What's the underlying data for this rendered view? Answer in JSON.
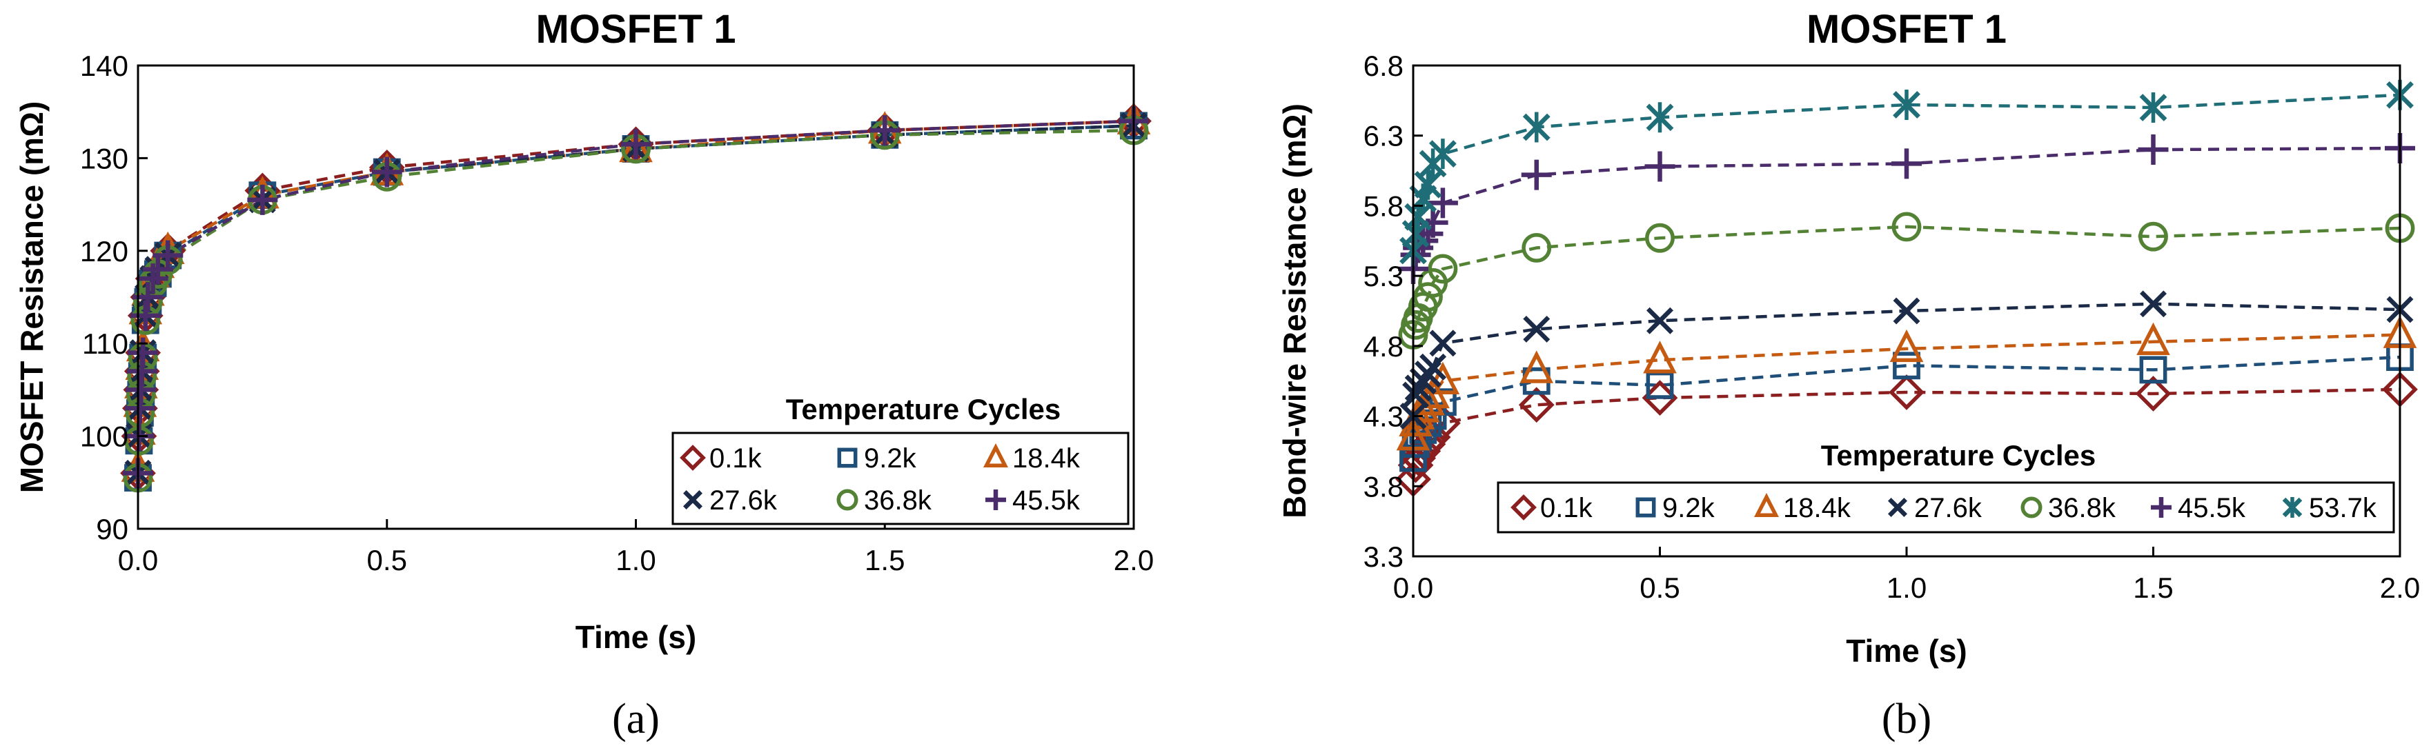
{
  "chart_data": [
    {
      "type": "scatter",
      "panel_label": "(a)",
      "title": "MOSFET 1",
      "xlabel": "Time (s)",
      "ylabel": "MOSFET Resistance (mΩ)",
      "xlim": [
        0,
        2
      ],
      "ylim": [
        90,
        140
      ],
      "xticks": [
        "0.0",
        "0.5",
        "1.0",
        "1.5",
        "2.0"
      ],
      "yticks": [
        "90",
        "100",
        "110",
        "120",
        "130",
        "140"
      ],
      "legend_title": "Temperature Cycles",
      "legend_position": "bottom-right",
      "series": [
        {
          "name": "0.1k",
          "marker": "diamond",
          "color": "#8B1E1E",
          "x": [
            0,
            0.002,
            0.004,
            0.006,
            0.008,
            0.01,
            0.015,
            0.02,
            0.03,
            0.04,
            0.06,
            0.25,
            0.5,
            1.0,
            1.5,
            2.0
          ],
          "y": [
            96,
            100,
            103,
            105,
            107,
            109,
            113,
            115,
            117,
            118,
            120,
            126.5,
            129,
            131.5,
            133,
            134
          ]
        },
        {
          "name": "9.2k",
          "marker": "square",
          "color": "#1F4E79",
          "x": [
            0,
            0.002,
            0.004,
            0.006,
            0.008,
            0.01,
            0.015,
            0.02,
            0.03,
            0.04,
            0.06,
            0.25,
            0.5,
            1.0,
            1.5,
            2.0
          ],
          "y": [
            95.5,
            99.5,
            102.5,
            104.5,
            106.5,
            108.5,
            112.5,
            114.5,
            116.5,
            117.5,
            119.5,
            126,
            128.5,
            131,
            132.5,
            133.5
          ]
        },
        {
          "name": "18.4k",
          "marker": "triangle",
          "color": "#C55A11",
          "x": [
            0,
            0.002,
            0.004,
            0.006,
            0.008,
            0.01,
            0.015,
            0.02,
            0.03,
            0.04,
            0.06,
            0.25,
            0.5,
            1.0,
            1.5,
            2.0
          ],
          "y": [
            96.5,
            100.5,
            103.5,
            105.5,
            107.5,
            109.5,
            113.5,
            115.5,
            117.5,
            118.5,
            120,
            126,
            128.5,
            131,
            133,
            134
          ]
        },
        {
          "name": "27.6k",
          "marker": "x",
          "color": "#1B2A47",
          "x": [
            0,
            0.002,
            0.004,
            0.006,
            0.008,
            0.01,
            0.015,
            0.02,
            0.03,
            0.04,
            0.06,
            0.25,
            0.5,
            1.0,
            1.5,
            2.0
          ],
          "y": [
            96,
            100,
            103,
            105,
            107,
            109,
            113,
            115,
            117,
            118,
            119.5,
            125.5,
            128.5,
            131,
            132.5,
            133.5
          ]
        },
        {
          "name": "36.8k",
          "marker": "circle",
          "color": "#548235",
          "x": [
            0,
            0.002,
            0.004,
            0.006,
            0.008,
            0.01,
            0.015,
            0.02,
            0.03,
            0.04,
            0.06,
            0.25,
            0.5,
            1.0,
            1.5,
            2.0
          ],
          "y": [
            95.5,
            99.5,
            102.5,
            104.5,
            106.5,
            108.5,
            112.5,
            114.5,
            116.5,
            117.5,
            119,
            125.5,
            128,
            131,
            132.5,
            133
          ]
        },
        {
          "name": "45.5k",
          "marker": "plus",
          "color": "#4B2C6B",
          "x": [
            0,
            0.002,
            0.004,
            0.006,
            0.008,
            0.01,
            0.015,
            0.02,
            0.03,
            0.04,
            0.06,
            0.25,
            0.5,
            1.0,
            1.5,
            2.0
          ],
          "y": [
            96,
            100,
            103,
            105,
            107,
            109,
            113,
            115,
            117,
            118,
            119.5,
            125.5,
            128.5,
            131.5,
            133,
            134
          ]
        }
      ]
    },
    {
      "type": "scatter",
      "panel_label": "(b)",
      "title": "MOSFET 1",
      "xlabel": "Time (s)",
      "ylabel": "Bond-wire Resistance (mΩ)",
      "xlim": [
        0,
        2
      ],
      "ylim": [
        3.3,
        6.8
      ],
      "xticks": [
        "0.0",
        "0.5",
        "1.0",
        "1.5",
        "2.0"
      ],
      "yticks": [
        "3.3",
        "3.8",
        "4.3",
        "4.8",
        "5.3",
        "5.8",
        "6.3",
        "6.8"
      ],
      "legend_title": "Temperature Cycles",
      "legend_position": "bottom",
      "series": [
        {
          "name": "0.1k",
          "marker": "diamond",
          "color": "#8B1E1E",
          "x": [
            0,
            0.005,
            0.01,
            0.02,
            0.03,
            0.04,
            0.06,
            0.25,
            0.5,
            1.0,
            1.5,
            2.0
          ],
          "y": [
            3.85,
            3.95,
            4.0,
            4.05,
            4.1,
            4.15,
            4.25,
            4.38,
            4.43,
            4.47,
            4.46,
            4.49
          ]
        },
        {
          "name": "9.2k",
          "marker": "square",
          "color": "#1F4E79",
          "x": [
            0,
            0.005,
            0.01,
            0.02,
            0.03,
            0.04,
            0.06,
            0.25,
            0.5,
            1.0,
            1.5,
            2.0
          ],
          "y": [
            4.0,
            4.1,
            4.15,
            4.2,
            4.25,
            4.3,
            4.4,
            4.55,
            4.52,
            4.66,
            4.63,
            4.72
          ]
        },
        {
          "name": "18.4k",
          "marker": "triangle",
          "color": "#C55A11",
          "x": [
            0,
            0.005,
            0.01,
            0.02,
            0.03,
            0.04,
            0.06,
            0.25,
            0.5,
            1.0,
            1.5,
            2.0
          ],
          "y": [
            4.15,
            4.25,
            4.3,
            4.35,
            4.4,
            4.45,
            4.55,
            4.63,
            4.7,
            4.78,
            4.83,
            4.88
          ]
        },
        {
          "name": "27.6k",
          "marker": "x",
          "color": "#1B2A47",
          "x": [
            0,
            0.005,
            0.01,
            0.02,
            0.03,
            0.04,
            0.06,
            0.25,
            0.5,
            1.0,
            1.5,
            2.0
          ],
          "y": [
            4.3,
            4.45,
            4.5,
            4.55,
            4.6,
            4.65,
            4.82,
            4.92,
            4.98,
            5.05,
            5.1,
            5.06
          ]
        },
        {
          "name": "36.8k",
          "marker": "circle",
          "color": "#548235",
          "x": [
            0,
            0.005,
            0.01,
            0.02,
            0.03,
            0.04,
            0.06,
            0.25,
            0.5,
            1.0,
            1.5,
            2.0
          ],
          "y": [
            4.88,
            4.95,
            5.0,
            5.08,
            5.15,
            5.25,
            5.35,
            5.5,
            5.57,
            5.65,
            5.58,
            5.64
          ]
        },
        {
          "name": "45.5k",
          "marker": "plus",
          "color": "#4B2C6B",
          "x": [
            0,
            0.005,
            0.01,
            0.02,
            0.03,
            0.04,
            0.06,
            0.25,
            0.5,
            1.0,
            1.5,
            2.0
          ],
          "y": [
            5.35,
            5.45,
            5.5,
            5.55,
            5.6,
            5.68,
            5.82,
            6.02,
            6.08,
            6.1,
            6.2,
            6.21
          ]
        },
        {
          "name": "53.7k",
          "marker": "star",
          "color": "#1F6E77",
          "x": [
            0,
            0.005,
            0.01,
            0.02,
            0.03,
            0.04,
            0.06,
            0.25,
            0.5,
            1.0,
            1.5,
            2.0
          ],
          "y": [
            5.48,
            5.6,
            5.72,
            5.85,
            5.95,
            6.1,
            6.17,
            6.36,
            6.43,
            6.52,
            6.5,
            6.59
          ]
        }
      ]
    }
  ]
}
